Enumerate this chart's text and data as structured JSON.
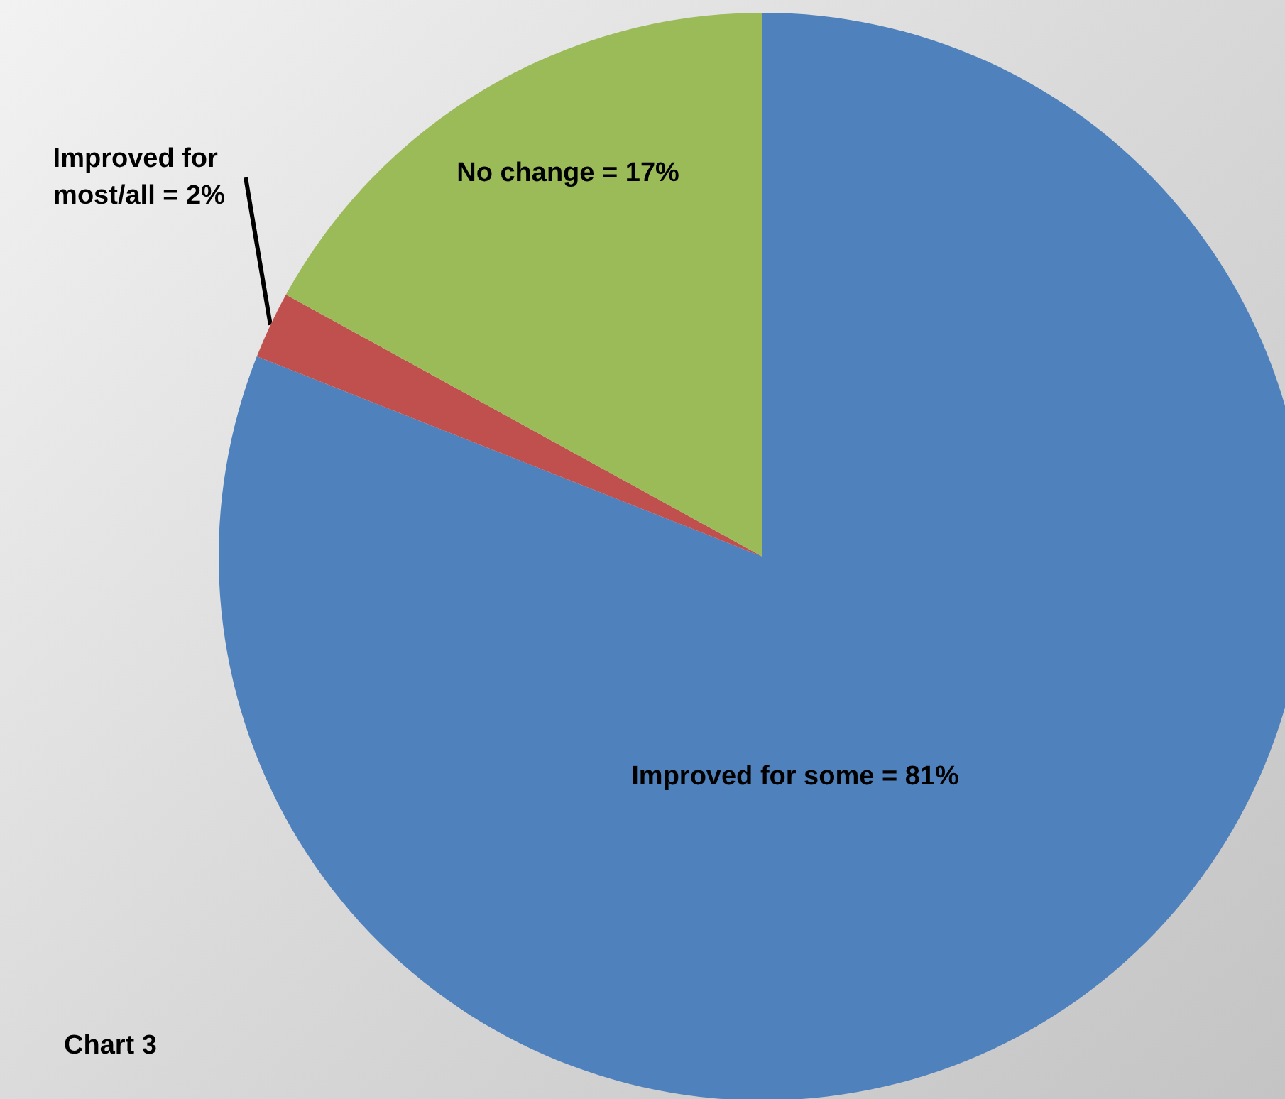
{
  "chart_data": {
    "type": "pie",
    "categories": [
      "Improved for some",
      "Improved for most/all",
      "No change"
    ],
    "values": [
      81,
      2,
      17
    ],
    "colors": [
      "#4f81bd",
      "#c0504d",
      "#9bbb59"
    ],
    "value_labels": [
      "= 81%",
      "= 2%",
      "= 17%"
    ],
    "annotations": [
      "Chart 3"
    ],
    "legend": false
  }
}
